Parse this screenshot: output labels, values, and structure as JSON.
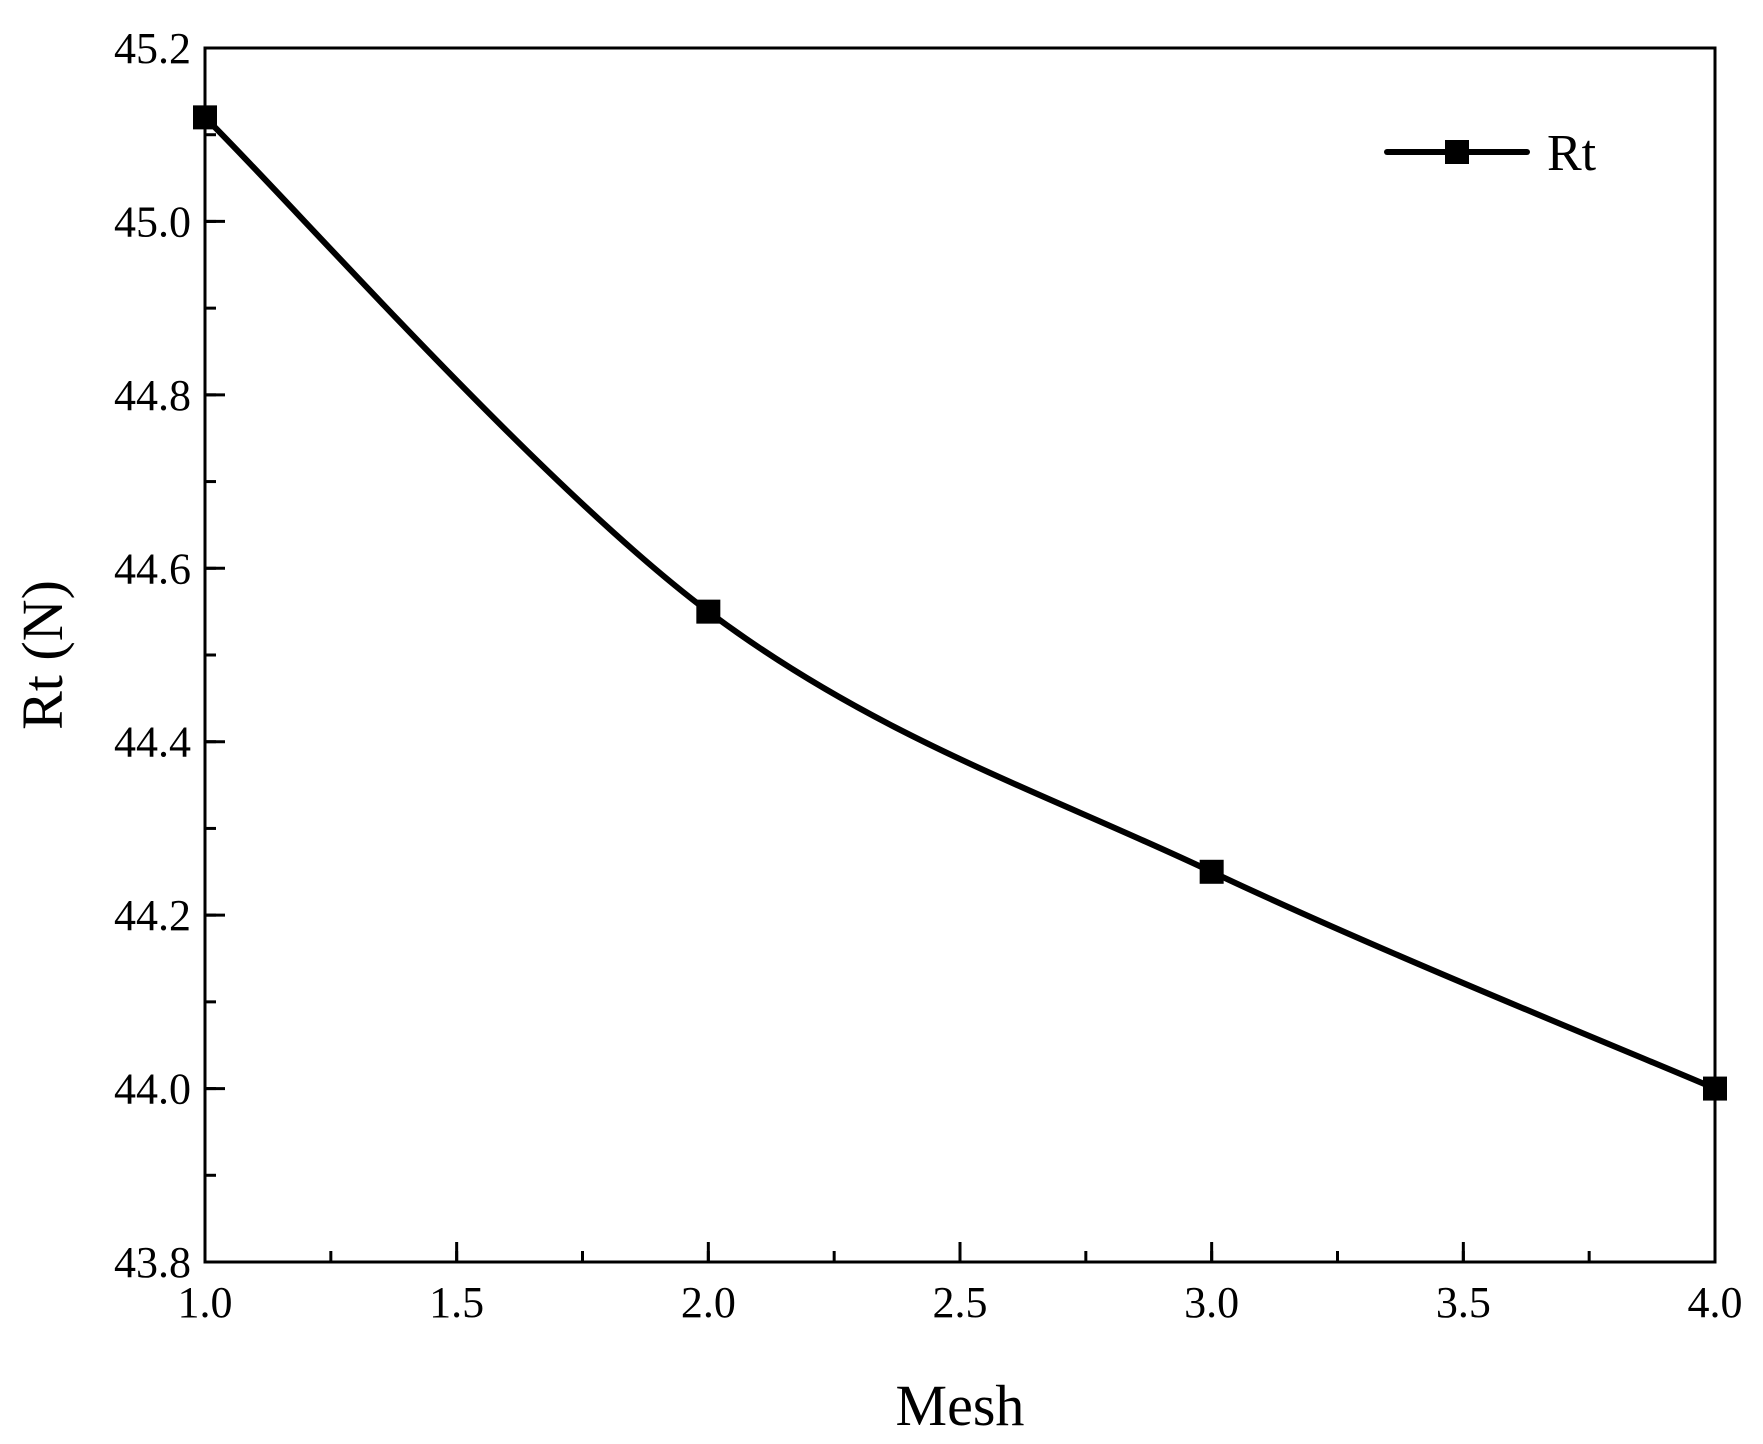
{
  "chart_data": {
    "type": "line",
    "title": "",
    "xlabel": "Mesh",
    "ylabel": "Rt (N)",
    "xlim": [
      1.0,
      4.0
    ],
    "ylim": [
      43.8,
      45.2
    ],
    "x_ticks": [
      "1.0",
      "1.5",
      "2.0",
      "2.5",
      "3.0",
      "3.5",
      "4.0"
    ],
    "y_ticks": [
      "43.8",
      "44.0",
      "44.2",
      "44.4",
      "44.6",
      "44.8",
      "45.0",
      "45.2"
    ],
    "x_tick_values": [
      1.0,
      1.5,
      2.0,
      2.5,
      3.0,
      3.5,
      4.0
    ],
    "y_tick_values": [
      43.8,
      44.0,
      44.2,
      44.4,
      44.6,
      44.8,
      45.0,
      45.2
    ],
    "x_minor_step": 0.25,
    "y_minor_step": 0.1,
    "grid": false,
    "legend_position": "top-right",
    "marker": "square",
    "line_style": "smooth",
    "colors": {
      "line": "#000000",
      "axis": "#000000",
      "background": "#ffffff"
    },
    "series": [
      {
        "name": "Rt",
        "x": [
          1.0,
          2.0,
          3.0,
          4.0
        ],
        "y": [
          45.12,
          44.55,
          44.25,
          44.0
        ]
      }
    ]
  }
}
